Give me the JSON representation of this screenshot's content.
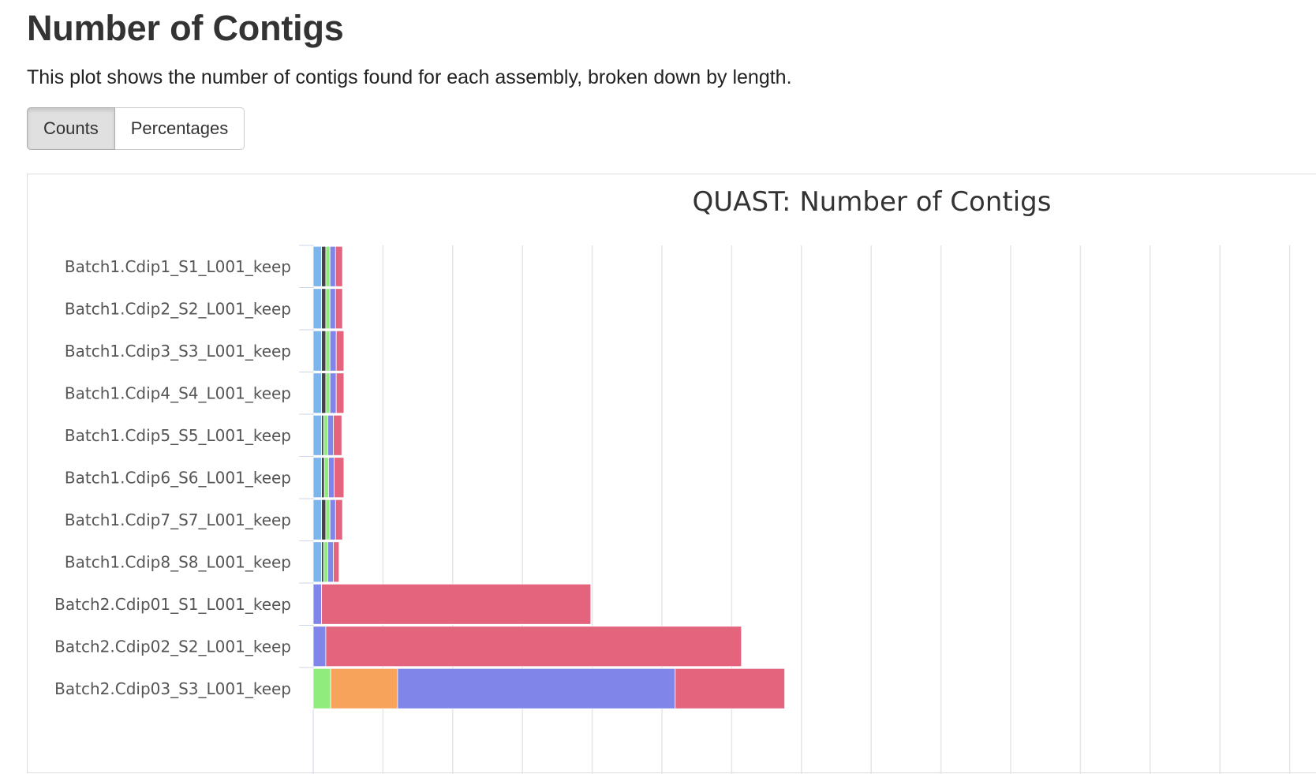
{
  "header": {
    "title": "Number of Contigs",
    "description": "This plot shows the number of contigs found for each assembly, broken down by length."
  },
  "toggle": {
    "counts_label": "Counts",
    "percentages_label": "Percentages",
    "active": "Counts"
  },
  "chart_data": {
    "type": "bar",
    "orientation": "horizontal",
    "stacked": true,
    "title": "QUAST: Number of Contigs",
    "xlabel": "",
    "ylabel": "",
    "grid": true,
    "xlim": [
      0,
      1360
    ],
    "categories": [
      "Batch1.Cdip1_S1_L001_keep",
      "Batch1.Cdip2_S2_L001_keep",
      "Batch1.Cdip3_S3_L001_keep",
      "Batch1.Cdip4_S4_L001_keep",
      "Batch1.Cdip5_S5_L001_keep",
      "Batch1.Cdip6_S6_L001_keep",
      "Batch1.Cdip7_S7_L001_keep",
      "Batch1.Cdip8_S8_L001_keep",
      "Batch2.Cdip01_S1_L001_keep",
      "Batch2.Cdip02_S2_L001_keep",
      "Batch2.Cdip03_S3_L001_keep"
    ],
    "series": [
      {
        "color": "#7cb5ec",
        "values": [
          12,
          12,
          12,
          12,
          12,
          12,
          12,
          12,
          0,
          0,
          0
        ]
      },
      {
        "color": "#434348",
        "values": [
          6,
          6,
          6,
          6,
          3,
          4,
          6,
          3,
          0,
          0,
          0
        ]
      },
      {
        "color": "#90ed7d",
        "values": [
          6,
          6,
          6,
          6,
          6,
          6,
          6,
          6,
          0,
          0,
          25
        ]
      },
      {
        "color": "#f7a35c",
        "values": [
          0,
          0,
          0,
          0,
          0,
          0,
          0,
          0,
          0,
          0,
          96
        ]
      },
      {
        "color": "#8085e9",
        "values": [
          8,
          8,
          9,
          9,
          8,
          8,
          8,
          8,
          12,
          18,
          398
        ]
      },
      {
        "color": "#e4647e",
        "values": [
          10,
          10,
          11,
          11,
          12,
          14,
          10,
          8,
          386,
          596,
          157
        ]
      }
    ]
  }
}
